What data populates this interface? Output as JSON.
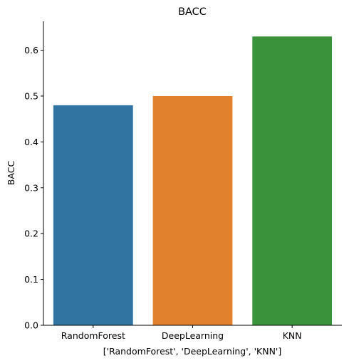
{
  "chart_data": {
    "type": "bar",
    "title": "BACC",
    "xlabel": "['RandomForest', 'DeepLearning', 'KNN']",
    "ylabel": "BACC",
    "categories": [
      "RandomForest",
      "DeepLearning",
      "KNN"
    ],
    "values": [
      0.48,
      0.5,
      0.63
    ],
    "colors": [
      "#3274a1",
      "#e1812c",
      "#3a923a"
    ],
    "ylim": [
      0,
      0.663
    ],
    "yticks": [
      "0.0",
      "0.1",
      "0.2",
      "0.3",
      "0.4",
      "0.5",
      "0.6"
    ],
    "grid": false,
    "legend": "none"
  }
}
